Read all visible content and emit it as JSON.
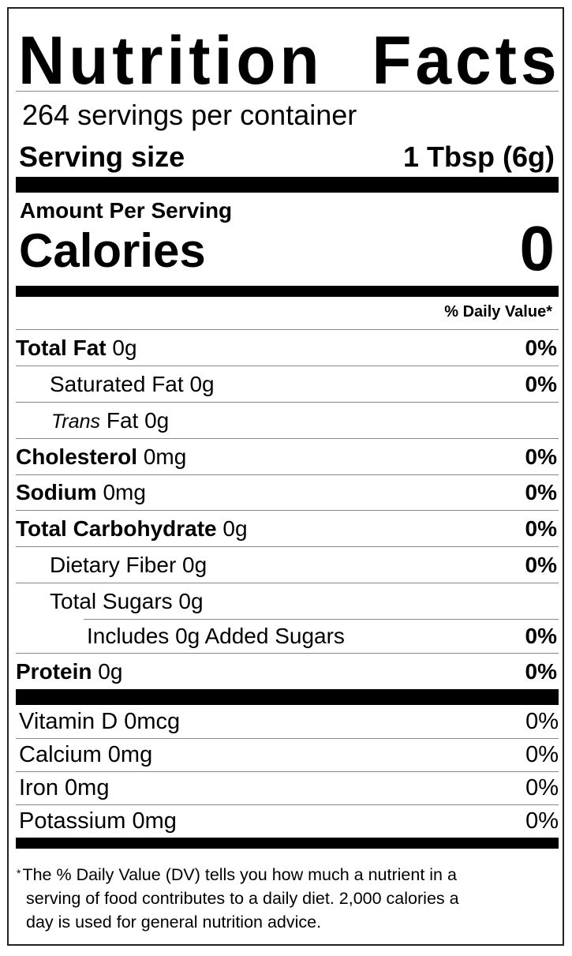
{
  "title": "Nutrition Facts",
  "servings_per_container": "264 servings per container",
  "serving_size": {
    "label": "Serving size",
    "value": "1 Tbsp (6g)"
  },
  "amount_per_serving": "Amount Per Serving",
  "calories": {
    "label": "Calories",
    "value": "0"
  },
  "daily_value_header": "% Daily Value*",
  "nutrients": [
    {
      "name": "Total Fat",
      "amount": "0g",
      "dv": "0%"
    },
    {
      "name": "Saturated Fat",
      "amount": "0g",
      "dv": "0%"
    },
    {
      "name": "Trans",
      "name_suffix": "Fat",
      "amount": "0g",
      "dv": ""
    },
    {
      "name": "Cholesterol",
      "amount": "0mg",
      "dv": "0%"
    },
    {
      "name": "Sodium",
      "amount": "0mg",
      "dv": "0%"
    },
    {
      "name": "Total Carbohydrate",
      "amount": "0g",
      "dv": "0%"
    },
    {
      "name": "Dietary Fiber",
      "amount": "0g",
      "dv": "0%"
    },
    {
      "name": "Total Sugars",
      "amount": "0g",
      "dv": ""
    },
    {
      "name": "Includes 0g Added Sugars",
      "amount": "",
      "dv": "0%"
    },
    {
      "name": "Protein",
      "amount": "0g",
      "dv": "0%"
    }
  ],
  "vitamins": [
    {
      "text": "Vitamin D 0mcg",
      "dv": "0%"
    },
    {
      "text": "Calcium 0mg",
      "dv": "0%"
    },
    {
      "text": "Iron 0mg",
      "dv": "0%"
    },
    {
      "text": "Potassium 0mg",
      "dv": "0%"
    }
  ],
  "footnote": {
    "asterisk": "*",
    "lines": [
      "The % Daily Value (DV) tells you how much a nutrient in a",
      "serving of food contributes to a daily diet. 2,000 calories a",
      "day is used for general nutrition advice."
    ]
  }
}
